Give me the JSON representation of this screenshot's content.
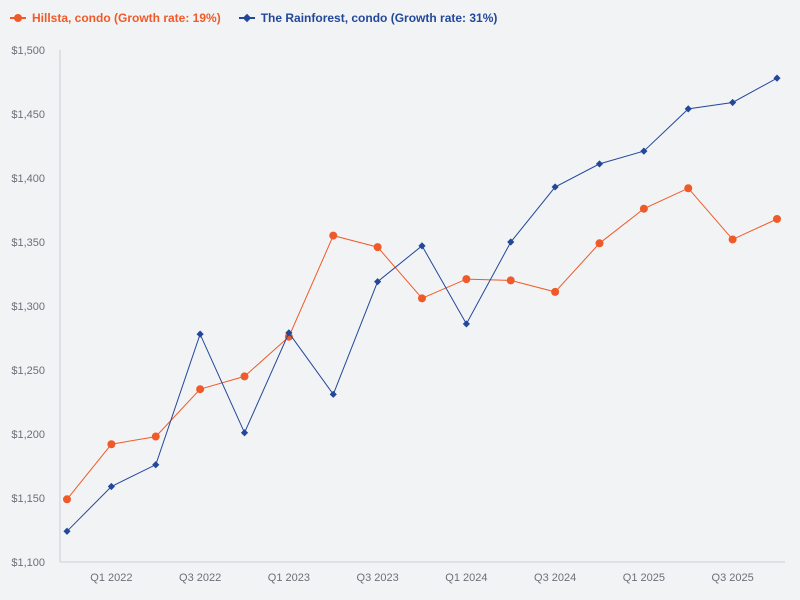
{
  "chart_data": {
    "type": "line",
    "title": "",
    "xlabel": "",
    "ylabel": "",
    "ylim": [
      1100,
      1500
    ],
    "y_ticks": [
      "$1,100",
      "$1,150",
      "$1,200",
      "$1,250",
      "$1,300",
      "$1,350",
      "$1,400",
      "$1,450",
      "$1,500"
    ],
    "y_tick_values": [
      1100,
      1150,
      1200,
      1250,
      1300,
      1350,
      1400,
      1450,
      1500
    ],
    "categories": [
      "Q4 2021",
      "Q1 2022",
      "Q2 2022",
      "Q3 2022",
      "Q4 2022",
      "Q1 2023",
      "Q2 2023",
      "Q3 2023",
      "Q4 2023",
      "Q1 2024",
      "Q2 2024",
      "Q3 2024",
      "Q4 2024",
      "Q1 2025",
      "Q2 2025",
      "Q3 2025",
      "Q4 2025"
    ],
    "x_tick_labels": [
      "Q1 2022",
      "Q3 2022",
      "Q1 2023",
      "Q3 2023",
      "Q1 2024",
      "Q3 2024",
      "Q1 2025",
      "Q3 2025"
    ],
    "x_tick_indices": [
      1,
      3,
      5,
      7,
      9,
      11,
      13,
      15
    ],
    "grid": false,
    "legend_position": "top-left",
    "series": [
      {
        "name": "Hillsta, condo (Growth rate: 19%)",
        "color": "#f05a28",
        "marker": "circle",
        "values": [
          1149,
          1192,
          1198,
          1235,
          1245,
          1276,
          1355,
          1346,
          1306,
          1321,
          1320,
          1311,
          1349,
          1376,
          1392,
          1352,
          1368
        ]
      },
      {
        "name": "The Rainforest, condo (Growth rate: 31%)",
        "color": "#23489b",
        "marker": "diamond",
        "values": [
          1124,
          1159,
          1176,
          1278,
          1201,
          1279,
          1231,
          1319,
          1347,
          1286,
          1350,
          1393,
          1411,
          1421,
          1454,
          1459,
          1478
        ]
      }
    ]
  }
}
